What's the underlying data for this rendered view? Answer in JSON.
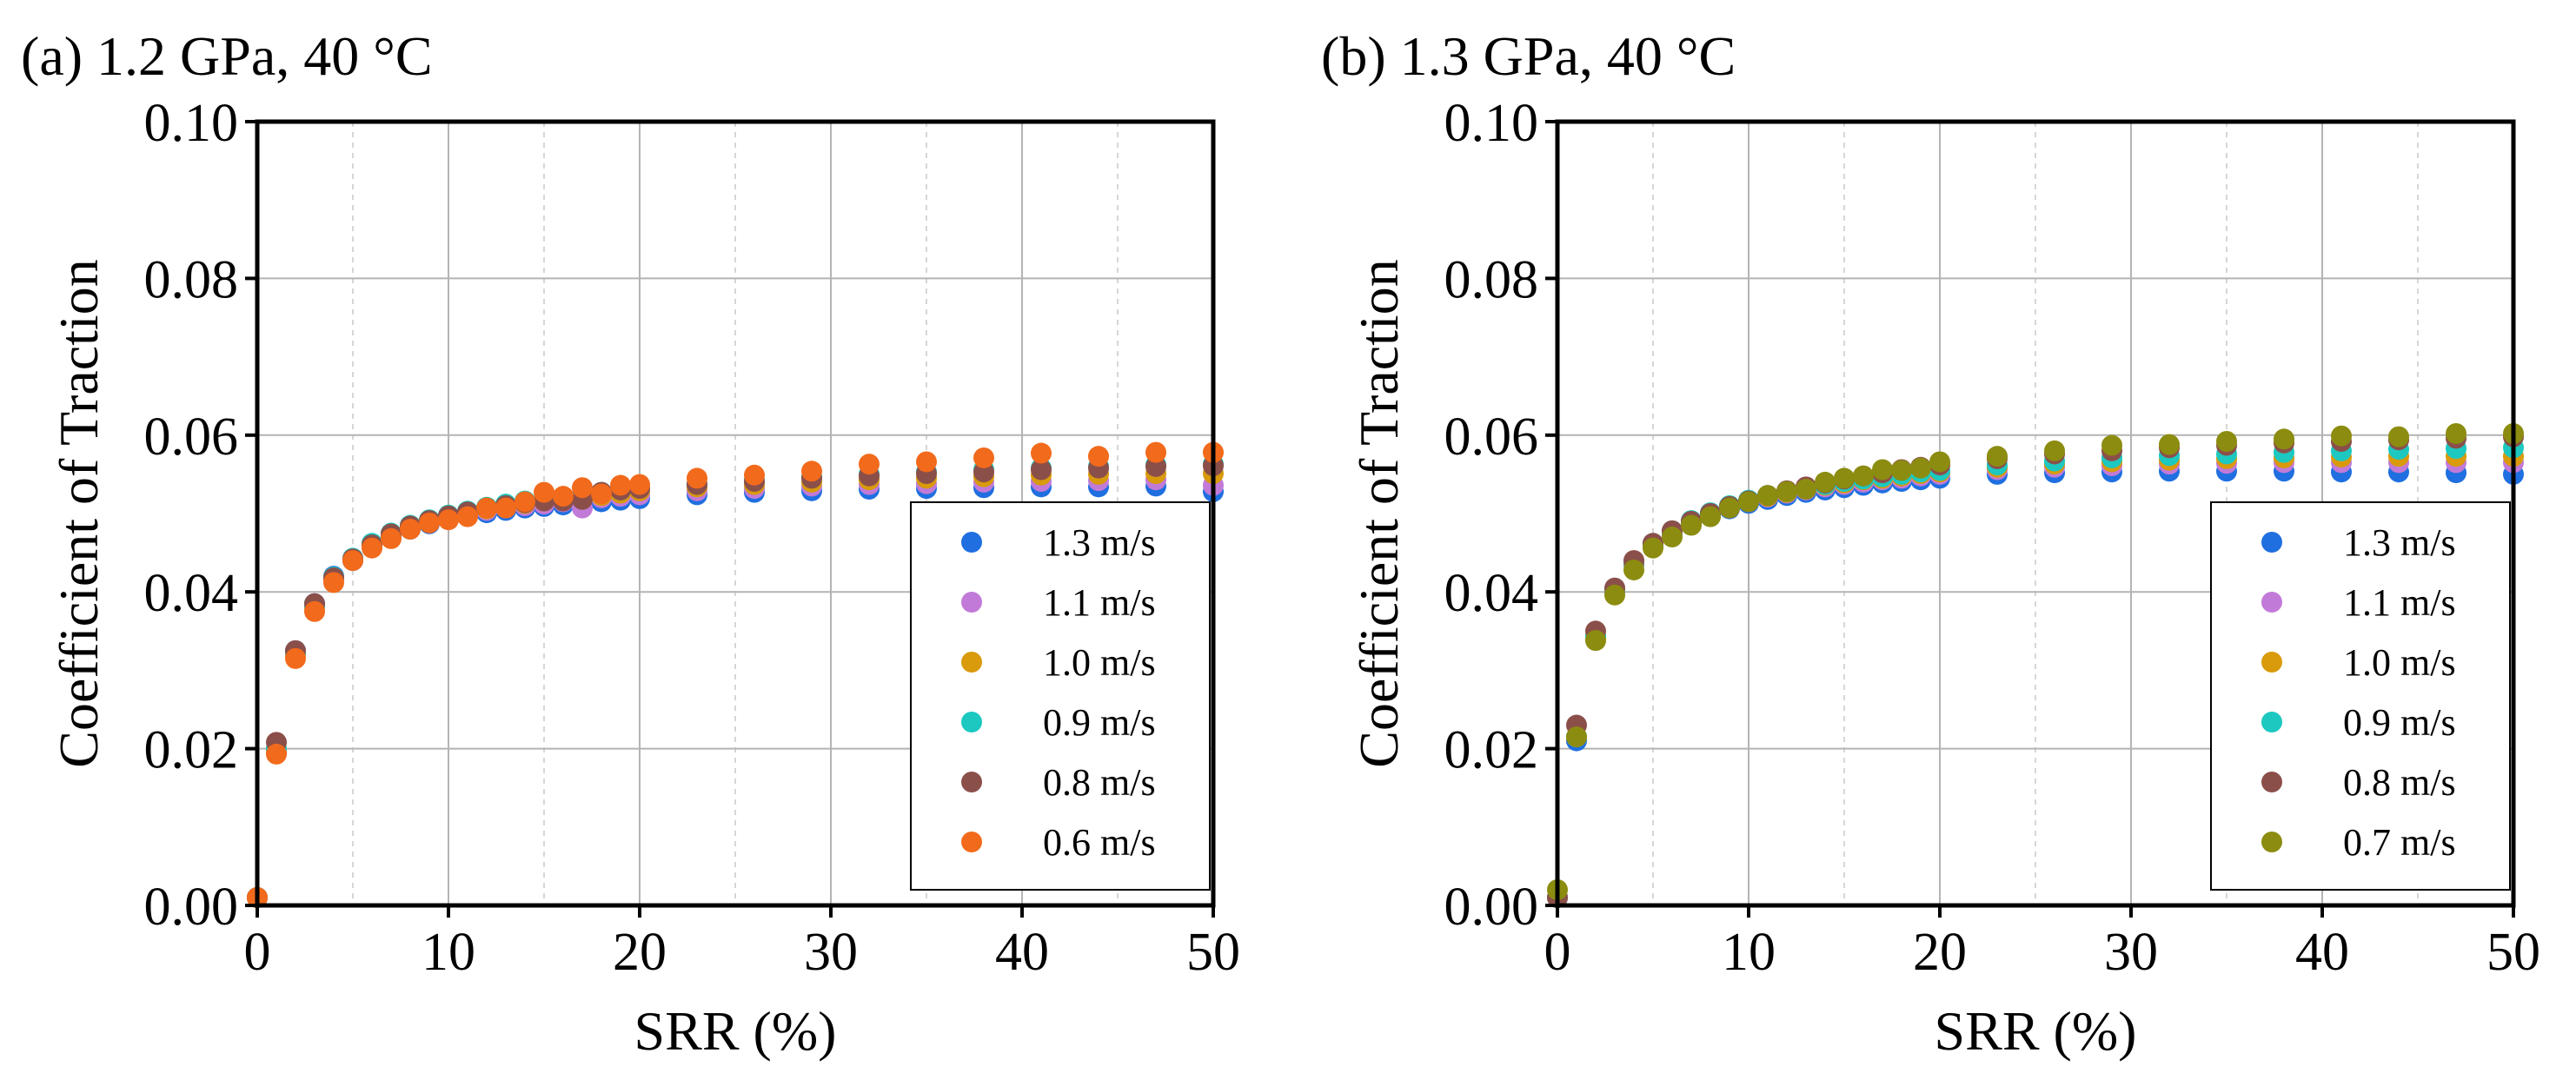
{
  "chart_data": [
    {
      "type": "scatter",
      "title": "(a) 1.2 GPa, 40 °C",
      "xlabel": "SRR (%)",
      "ylabel": "Coefficient of Traction",
      "xlim": [
        0,
        50
      ],
      "ylim": [
        0,
        0.1
      ],
      "xticks": [
        "0",
        "10",
        "20",
        "30",
        "40",
        "50"
      ],
      "yticks": [
        "0.00",
        "0.02",
        "0.04",
        "0.06",
        "0.08",
        "0.10"
      ],
      "grid": true,
      "legend_position": "bottom-right",
      "x": [
        0,
        1,
        2,
        3,
        4,
        5,
        6,
        7,
        8,
        9,
        10,
        11,
        12,
        13,
        14,
        15,
        16,
        17,
        18,
        19,
        20,
        23,
        26,
        29,
        32,
        35,
        38,
        41,
        44,
        47,
        50
      ],
      "series": [
        {
          "name": "1.3 m/s",
          "color": "#1f6fe0",
          "values": [
            0.001,
            0.0195,
            0.0325,
            0.0385,
            0.042,
            0.044,
            0.0458,
            0.047,
            0.048,
            0.0487,
            0.0493,
            0.0498,
            0.0501,
            0.0504,
            0.0507,
            0.0509,
            0.0511,
            0.0513,
            0.0515,
            0.0517,
            0.0519,
            0.0524,
            0.0527,
            0.0529,
            0.0531,
            0.0532,
            0.0533,
            0.0534,
            0.0534,
            0.0535,
            0.0528
          ]
        },
        {
          "name": "1.1 m/s",
          "color": "#c27ad8",
          "values": [
            0.001,
            0.0195,
            0.032,
            0.038,
            0.0418,
            0.0441,
            0.046,
            0.0473,
            0.0482,
            0.0489,
            0.0495,
            0.05,
            0.0504,
            0.0507,
            0.051,
            0.0512,
            0.0515,
            0.0507,
            0.052,
            0.0522,
            0.0524,
            0.0529,
            0.0532,
            0.0535,
            0.0537,
            0.0538,
            0.054,
            0.0541,
            0.0542,
            0.0543,
            0.0536
          ]
        },
        {
          "name": "1.0 m/s",
          "color": "#d99a0b",
          "values": [
            0.001,
            0.0198,
            0.032,
            0.038,
            0.0418,
            0.0442,
            0.0461,
            0.0474,
            0.0484,
            0.0491,
            0.0497,
            0.0502,
            0.0506,
            0.051,
            0.0513,
            0.0516,
            0.0518,
            0.052,
            0.0523,
            0.0526,
            0.0529,
            0.0534,
            0.0537,
            0.054,
            0.0543,
            0.0545,
            0.0547,
            0.0549,
            0.055,
            0.0551,
            0.0551
          ]
        },
        {
          "name": "0.9 m/s",
          "color": "#1cc8c0",
          "values": [
            0.001,
            0.02,
            0.0322,
            0.0382,
            0.0419,
            0.0443,
            0.0462,
            0.0475,
            0.0485,
            0.0492,
            0.0498,
            0.0503,
            0.0508,
            0.0512,
            0.0516,
            0.0519,
            0.0521,
            0.0524,
            0.0527,
            0.053,
            0.0533,
            0.0538,
            0.0543,
            0.0547,
            0.055,
            0.0553,
            0.0556,
            0.0558,
            0.056,
            0.0562,
            0.0563
          ]
        },
        {
          "name": "0.8 m/s",
          "color": "#8b4f4a",
          "values": [
            0.001,
            0.0208,
            0.0325,
            0.0385,
            0.0418,
            0.0442,
            0.046,
            0.0474,
            0.0484,
            0.0491,
            0.0497,
            0.0502,
            0.0507,
            0.051,
            0.0514,
            0.0516,
            0.0516,
            0.0518,
            0.0527,
            0.053,
            0.0532,
            0.0537,
            0.0541,
            0.0545,
            0.0548,
            0.0551,
            0.0553,
            0.0556,
            0.0558,
            0.056,
            0.0561
          ]
        },
        {
          "name": "0.6 m/s",
          "color": "#f26a1b",
          "values": [
            0.001,
            0.0193,
            0.0315,
            0.0375,
            0.0412,
            0.044,
            0.0456,
            0.0468,
            0.048,
            0.0488,
            0.0492,
            0.0496,
            0.0507,
            0.0507,
            0.0515,
            0.0527,
            0.0522,
            0.0533,
            0.0525,
            0.0536,
            0.0537,
            0.0545,
            0.0549,
            0.0554,
            0.0563,
            0.0566,
            0.0571,
            0.0577,
            0.0573,
            0.0578,
            0.0578
          ]
        }
      ]
    },
    {
      "type": "scatter",
      "title": "(b) 1.3 GPa, 40 °C",
      "xlabel": "SRR (%)",
      "ylabel": "Coefficient of Traction",
      "xlim": [
        0,
        50
      ],
      "ylim": [
        0,
        0.1
      ],
      "xticks": [
        "0",
        "10",
        "20",
        "30",
        "40",
        "50"
      ],
      "yticks": [
        "0.00",
        "0.02",
        "0.04",
        "0.06",
        "0.08",
        "0.10"
      ],
      "grid": true,
      "legend_position": "bottom-right",
      "x": [
        0,
        1,
        2,
        3,
        4,
        5,
        6,
        7,
        8,
        9,
        10,
        11,
        12,
        13,
        14,
        15,
        16,
        17,
        18,
        19,
        20,
        23,
        26,
        29,
        32,
        35,
        38,
        41,
        44,
        47,
        50
      ],
      "series": [
        {
          "name": "1.3 m/s",
          "color": "#1f6fe0",
          "values": [
            0.001,
            0.021,
            0.034,
            0.04,
            0.0435,
            0.0458,
            0.0474,
            0.0487,
            0.0497,
            0.0506,
            0.0513,
            0.0518,
            0.0523,
            0.0527,
            0.053,
            0.0533,
            0.0536,
            0.0539,
            0.0541,
            0.0543,
            0.0545,
            0.055,
            0.0552,
            0.0553,
            0.0554,
            0.0554,
            0.0554,
            0.0553,
            0.0553,
            0.0552,
            0.055
          ]
        },
        {
          "name": "1.1 m/s",
          "color": "#c27ad8",
          "values": [
            0.001,
            0.0215,
            0.0342,
            0.0402,
            0.0437,
            0.046,
            0.0476,
            0.0489,
            0.0499,
            0.0508,
            0.0515,
            0.0521,
            0.0526,
            0.053,
            0.0534,
            0.0537,
            0.054,
            0.0543,
            0.0545,
            0.0548,
            0.055,
            0.0556,
            0.0559,
            0.0561,
            0.0563,
            0.0564,
            0.0565,
            0.0565,
            0.0565,
            0.0565,
            0.0565
          ]
        },
        {
          "name": "1.0 m/s",
          "color": "#d99a0b",
          "values": [
            0.001,
            0.0215,
            0.0343,
            0.0403,
            0.0438,
            0.0461,
            0.0477,
            0.049,
            0.05,
            0.0509,
            0.0516,
            0.0522,
            0.0527,
            0.0532,
            0.0536,
            0.0539,
            0.0543,
            0.0545,
            0.0548,
            0.0551,
            0.0553,
            0.0559,
            0.0563,
            0.0566,
            0.0568,
            0.057,
            0.0571,
            0.0572,
            0.0573,
            0.0573,
            0.0573
          ]
        },
        {
          "name": "0.9 m/s",
          "color": "#1cc8c0",
          "values": [
            0.001,
            0.0215,
            0.0344,
            0.0404,
            0.0439,
            0.0462,
            0.0478,
            0.0491,
            0.0501,
            0.051,
            0.0517,
            0.0523,
            0.0528,
            0.0533,
            0.0537,
            0.0541,
            0.0544,
            0.0547,
            0.055,
            0.0553,
            0.0555,
            0.0562,
            0.0567,
            0.0571,
            0.0574,
            0.0576,
            0.0578,
            0.058,
            0.0582,
            0.0583,
            0.0584
          ]
        },
        {
          "name": "0.8 m/s",
          "color": "#8b4f4a",
          "values": [
            0.001,
            0.023,
            0.035,
            0.0405,
            0.044,
            0.0462,
            0.0478,
            0.049,
            0.05,
            0.0509,
            0.0516,
            0.0523,
            0.0529,
            0.0534,
            0.0539,
            0.0544,
            0.0548,
            0.0552,
            0.0556,
            0.0559,
            0.0562,
            0.057,
            0.0576,
            0.058,
            0.0584,
            0.0587,
            0.059,
            0.0592,
            0.0594,
            0.0596,
            0.0598
          ]
        },
        {
          "name": "0.7 m/s",
          "color": "#8c8c10",
          "values": [
            0.002,
            0.0215,
            0.0338,
            0.0396,
            0.0428,
            0.0456,
            0.047,
            0.0485,
            0.0496,
            0.0507,
            0.0515,
            0.0523,
            0.0528,
            0.0531,
            0.054,
            0.0545,
            0.0548,
            0.0556,
            0.0555,
            0.0558,
            0.0566,
            0.0573,
            0.058,
            0.0587,
            0.0588,
            0.0592,
            0.0595,
            0.0599,
            0.0598,
            0.0602,
            0.0602
          ]
        }
      ]
    }
  ]
}
